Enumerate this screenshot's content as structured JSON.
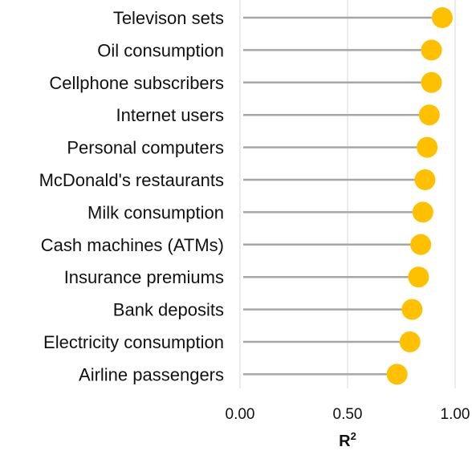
{
  "chart_data": {
    "type": "scatter",
    "subtype": "lollipop",
    "title": "",
    "xlabel": "R",
    "xlabel_superscript": "2",
    "ylabel": "",
    "xlim": [
      0,
      1
    ],
    "xticks": [
      "0.00",
      "0.50",
      "1.00"
    ],
    "grid": "vertical",
    "legend": "none",
    "colors": {
      "marker": "#FFC000",
      "stem": "#A6A6A6",
      "grid": "#D9D9D9"
    },
    "categories": [
      "Televison sets",
      "Oil consumption",
      "Cellphone subscribers",
      "Internet users",
      "Personal computers",
      "McDonald's restaurants",
      "Milk consumption",
      "Cash machines (ATMs)",
      "Insurance premiums",
      "Bank deposits",
      "Electricity consumption",
      "Airline passengers"
    ],
    "values": [
      0.94,
      0.89,
      0.89,
      0.88,
      0.87,
      0.86,
      0.85,
      0.84,
      0.83,
      0.8,
      0.79,
      0.73
    ]
  }
}
